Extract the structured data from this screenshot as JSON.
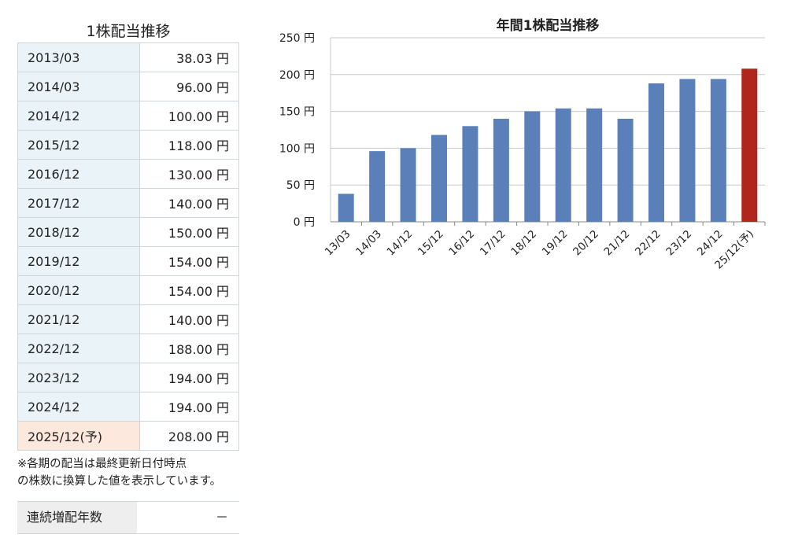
{
  "table": {
    "title": "1株配当推移",
    "rows": [
      {
        "period": "2013/03",
        "value": "38.03 円"
      },
      {
        "period": "2014/03",
        "value": "96.00 円"
      },
      {
        "period": "2014/12",
        "value": "100.00 円"
      },
      {
        "period": "2015/12",
        "value": "118.00 円"
      },
      {
        "period": "2016/12",
        "value": "130.00 円"
      },
      {
        "period": "2017/12",
        "value": "140.00 円"
      },
      {
        "period": "2018/12",
        "value": "150.00 円"
      },
      {
        "period": "2019/12",
        "value": "154.00 円"
      },
      {
        "period": "2020/12",
        "value": "154.00 円"
      },
      {
        "period": "2021/12",
        "value": "140.00 円"
      },
      {
        "period": "2022/12",
        "value": "188.00 円"
      },
      {
        "period": "2023/12",
        "value": "194.00 円"
      },
      {
        "period": "2024/12",
        "value": "194.00 円"
      },
      {
        "period": "2025/12(予)",
        "value": "208.00 円"
      }
    ],
    "note_line1": "※各期の配当は最終更新日付時点",
    "note_line2": "の株数に換算した値を表示しています。"
  },
  "streak": {
    "label": "連続増配年数",
    "value": "－"
  },
  "colors": {
    "bar": "#5a7fb9",
    "forecast_bar": "#b0261c"
  },
  "chart_data": {
    "type": "bar",
    "title": "年間1株配当推移",
    "categories": [
      "13/03",
      "14/03",
      "14/12",
      "15/12",
      "16/12",
      "17/12",
      "18/12",
      "19/12",
      "20/12",
      "21/12",
      "22/12",
      "23/12",
      "24/12",
      "25/12(予)"
    ],
    "values": [
      38.03,
      96,
      100,
      118,
      130,
      140,
      150,
      154,
      154,
      140,
      188,
      194,
      194,
      208
    ],
    "highlight_index": 13,
    "ylim": [
      0,
      250
    ],
    "yticks": [
      "0 円",
      "50 円",
      "100 円",
      "150 円",
      "200 円",
      "250 円"
    ],
    "ytick_values": [
      0,
      50,
      100,
      150,
      200,
      250
    ],
    "grid": true,
    "xlabel": "",
    "ylabel": ""
  }
}
